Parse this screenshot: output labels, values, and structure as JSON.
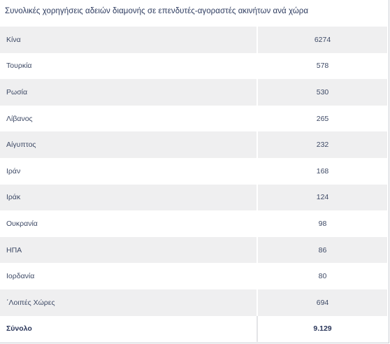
{
  "title": "Συνολικές χορηγήσεις αδειών διαμονής σε επενδυτές-αγοραστές ακινήτων ανά χώρα",
  "chart_data": {
    "type": "table",
    "columns": [
      "",
      ""
    ],
    "rows": [
      {
        "country": "Κίνα",
        "value": "6274"
      },
      {
        "country": "Τουρκία",
        "value": "578"
      },
      {
        "country": "Ρωσία",
        "value": "530"
      },
      {
        "country": "Λίβανος",
        "value": "265"
      },
      {
        "country": "Αίγυπτος",
        "value": "232"
      },
      {
        "country": "Ιράν",
        "value": "168"
      },
      {
        "country": "Ιράκ",
        "value": "124"
      },
      {
        "country": "Ουκρανία",
        "value": "98"
      },
      {
        "country": "ΗΠΑ",
        "value": "86"
      },
      {
        "country": "Ιορδανία",
        "value": "80"
      },
      {
        "country": "΄Λοιπές Χώρες",
        "value": "694"
      }
    ],
    "total": {
      "label": "Σύνολο",
      "value": "9.129"
    }
  }
}
